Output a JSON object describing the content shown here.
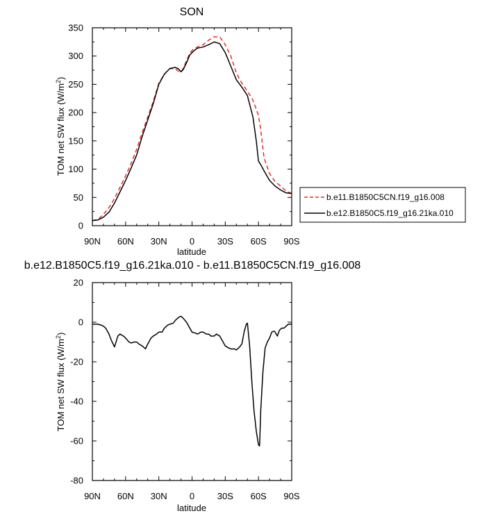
{
  "chart_data": [
    {
      "type": "line",
      "title": "SON",
      "xlabel": "latitude",
      "ylabel_main": "TOM net SW flux (W/m",
      "ylabel_sup": "2",
      "ylabel_close": ")",
      "xlim": [
        90,
        -90
      ],
      "ylim": [
        0,
        350
      ],
      "xticks": [
        90,
        60,
        30,
        0,
        -30,
        -60,
        -90
      ],
      "xtick_labels": [
        "90N",
        "60N",
        "30N",
        "0",
        "30S",
        "60S",
        "90S"
      ],
      "yticks": [
        0,
        50,
        100,
        150,
        200,
        250,
        300,
        350
      ],
      "ytick_labels": [
        "0",
        "50",
        "100",
        "150",
        "200",
        "250",
        "300",
        "350"
      ],
      "legend": "right",
      "series": [
        {
          "name": "b.e11.B1850C5CN.f19_g16.008",
          "color": "#e8281e",
          "dash": true,
          "x": [
            90,
            85,
            80,
            75,
            70,
            65,
            60,
            55,
            50,
            45,
            40,
            35,
            30,
            25,
            20,
            15,
            12,
            10,
            8,
            5,
            2,
            0,
            -2,
            -5,
            -10,
            -15,
            -20,
            -25,
            -30,
            -35,
            -40,
            -45,
            -50,
            -55,
            -60,
            -62,
            -65,
            -70,
            -75,
            -80,
            -85,
            -90
          ],
          "y": [
            9,
            11,
            20,
            32,
            48,
            68,
            88,
            110,
            135,
            165,
            192,
            220,
            252,
            268,
            278,
            277,
            273,
            272,
            278,
            292,
            305,
            310,
            313,
            316,
            320,
            328,
            334,
            334,
            320,
            300,
            270,
            252,
            238,
            222,
            195,
            170,
            120,
            92,
            78,
            70,
            61,
            57
          ]
        },
        {
          "name": "b.e12.B1850C5.f19_g16.21ka.010",
          "color": "#000000",
          "dash": false,
          "x": [
            90,
            85,
            80,
            75,
            70,
            65,
            60,
            55,
            50,
            45,
            40,
            35,
            30,
            25,
            20,
            15,
            12,
            10,
            8,
            5,
            2,
            0,
            -2,
            -5,
            -10,
            -15,
            -20,
            -25,
            -30,
            -35,
            -40,
            -45,
            -50,
            -55,
            -58,
            -60,
            -62,
            -65,
            -70,
            -75,
            -80,
            -85,
            -90
          ],
          "y": [
            9,
            10,
            15,
            24,
            40,
            60,
            80,
            102,
            125,
            158,
            187,
            216,
            250,
            268,
            278,
            280,
            277,
            272,
            276,
            288,
            302,
            306,
            310,
            314,
            316,
            320,
            325,
            322,
            306,
            282,
            258,
            245,
            230,
            192,
            150,
            114,
            108,
            97,
            80,
            70,
            63,
            58,
            57
          ]
        }
      ]
    },
    {
      "type": "line",
      "title": "b.e12.B1850C5.f19_g16.21ka.010 - b.e11.B1850C5CN.f19_g16.008",
      "xlabel": "latitude",
      "ylabel_main": "TOM net SW flux (W/m",
      "ylabel_sup": "2",
      "ylabel_close": ")",
      "xlim": [
        90,
        -90
      ],
      "ylim": [
        -80,
        20
      ],
      "xticks": [
        90,
        60,
        30,
        0,
        -30,
        -60,
        -90
      ],
      "xtick_labels": [
        "90N",
        "60N",
        "30N",
        "0",
        "30S",
        "60S",
        "90S"
      ],
      "yticks": [
        20,
        0,
        -20,
        -40,
        -60,
        -80
      ],
      "ytick_labels": [
        "20",
        "0",
        "-20",
        "-40",
        "-60",
        "-80"
      ],
      "series": [
        {
          "color": "#000000",
          "dash": false,
          "x": [
            90,
            85,
            82,
            80,
            78,
            75,
            73,
            70,
            67,
            65,
            62,
            60,
            57,
            55,
            52,
            50,
            48,
            45,
            42,
            40,
            37,
            35,
            32,
            30,
            27,
            25,
            22,
            20,
            17,
            15,
            12,
            10,
            8,
            5,
            3,
            0,
            -3,
            -5,
            -8,
            -10,
            -13,
            -15,
            -17,
            -20,
            -22,
            -25,
            -27,
            -30,
            -33,
            -35,
            -38,
            -40,
            -43,
            -45,
            -47,
            -49,
            -50,
            -52,
            -54,
            -56,
            -58,
            -60,
            -61,
            -62,
            -64,
            -66,
            -68,
            -70,
            -72,
            -74,
            -75,
            -77,
            -79,
            -81,
            -83,
            -85,
            -87,
            -90
          ],
          "y": [
            -1,
            -1,
            -1.5,
            -2,
            -3,
            -6,
            -9,
            -12.5,
            -7,
            -6,
            -7,
            -8,
            -10,
            -10.5,
            -10,
            -10,
            -11,
            -12,
            -13.5,
            -11,
            -8,
            -7,
            -6,
            -5,
            -5,
            -3,
            -1.5,
            -1,
            -0.5,
            1,
            2.5,
            3,
            2,
            0,
            -2,
            -5,
            -5.5,
            -6,
            -5,
            -5,
            -6,
            -6,
            -7,
            -7,
            -6,
            -7,
            -9,
            -12,
            -13,
            -13.5,
            -13.5,
            -14,
            -12.5,
            -11,
            -5,
            -1,
            -0.5,
            -12,
            -30,
            -45,
            -55,
            -62,
            -62.5,
            -45,
            -25,
            -13,
            -10,
            -8,
            -5,
            -4.5,
            -5,
            -7,
            -4,
            -3,
            -3,
            -2,
            -1,
            -1
          ]
        }
      ]
    }
  ]
}
